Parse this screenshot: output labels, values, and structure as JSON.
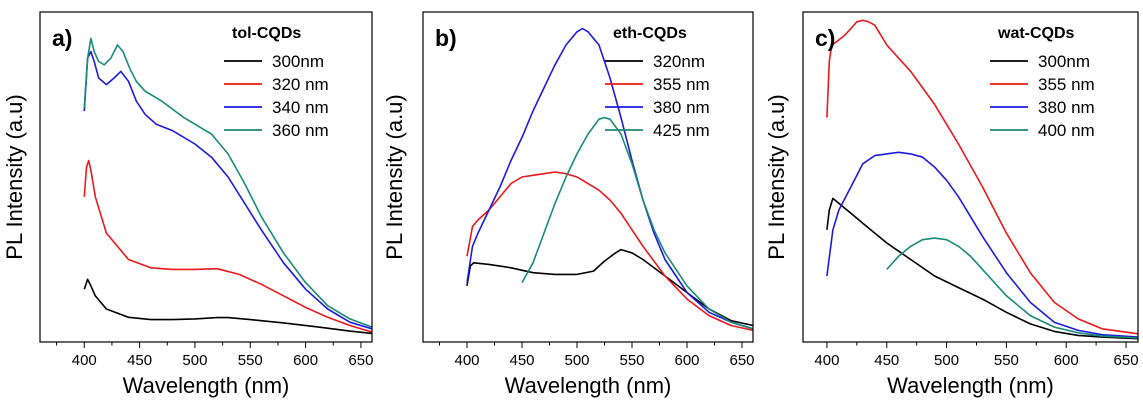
{
  "chart_data": [
    {
      "type": "line",
      "panel_label": "a)",
      "legend_title": "tol-CQDs",
      "xlabel": "Wavelength (nm)",
      "ylabel": "PL Intensity (a.u)",
      "xlim": [
        360,
        660
      ],
      "ylim": [
        0,
        1
      ],
      "xticks": [
        400,
        450,
        500,
        550,
        600,
        650
      ],
      "grid": false,
      "legend_position": "top-right",
      "series": [
        {
          "name": "300nm",
          "color": "#000000",
          "x": [
            400,
            403,
            406,
            410,
            420,
            440,
            460,
            480,
            500,
            520,
            530,
            550,
            580,
            610,
            640,
            660
          ],
          "y": [
            0.16,
            0.19,
            0.17,
            0.14,
            0.1,
            0.075,
            0.068,
            0.068,
            0.07,
            0.074,
            0.074,
            0.068,
            0.058,
            0.046,
            0.033,
            0.026
          ]
        },
        {
          "name": "320 nm",
          "color": "#e8191c",
          "x": [
            400,
            402,
            404,
            406,
            410,
            420,
            440,
            460,
            480,
            500,
            520,
            540,
            560,
            580,
            600,
            620,
            640,
            660
          ],
          "y": [
            0.44,
            0.53,
            0.55,
            0.52,
            0.44,
            0.33,
            0.25,
            0.225,
            0.22,
            0.22,
            0.222,
            0.205,
            0.175,
            0.14,
            0.105,
            0.075,
            0.05,
            0.03
          ]
        },
        {
          "name": "340 nm",
          "color": "#1c1cdc",
          "x": [
            400,
            403,
            406,
            409,
            413,
            420,
            427,
            433,
            440,
            447,
            455,
            465,
            480,
            500,
            515,
            530,
            545,
            560,
            580,
            600,
            620,
            640,
            660
          ],
          "y": [
            0.7,
            0.86,
            0.88,
            0.85,
            0.8,
            0.78,
            0.8,
            0.82,
            0.79,
            0.73,
            0.69,
            0.66,
            0.64,
            0.6,
            0.56,
            0.5,
            0.42,
            0.34,
            0.24,
            0.16,
            0.1,
            0.06,
            0.04
          ]
        },
        {
          "name": "360 nm",
          "color": "#1a8a7a",
          "x": [
            400,
            403,
            406,
            409,
            413,
            418,
            424,
            430,
            435,
            441,
            447,
            455,
            470,
            490,
            500,
            515,
            530,
            545,
            560,
            580,
            600,
            620,
            640,
            660
          ],
          "y": [
            0.71,
            0.86,
            0.92,
            0.88,
            0.85,
            0.84,
            0.86,
            0.9,
            0.88,
            0.83,
            0.79,
            0.76,
            0.73,
            0.68,
            0.66,
            0.63,
            0.57,
            0.48,
            0.38,
            0.27,
            0.18,
            0.11,
            0.07,
            0.045
          ]
        }
      ]
    },
    {
      "type": "line",
      "panel_label": "b)",
      "legend_title": "eth-CQDs",
      "xlabel": "Wavelength (nm)",
      "ylabel": "PL Intensity (a.u)",
      "xlim": [
        360,
        660
      ],
      "ylim": [
        0,
        1
      ],
      "xticks": [
        400,
        450,
        500,
        550,
        600,
        650
      ],
      "grid": false,
      "legend_position": "top-right",
      "series": [
        {
          "name": "320nm",
          "color": "#000000",
          "x": [
            400,
            403,
            406,
            420,
            440,
            460,
            480,
            500,
            515,
            525,
            535,
            540,
            550,
            560,
            580,
            600,
            620,
            640,
            660
          ],
          "y": [
            0.17,
            0.23,
            0.24,
            0.235,
            0.225,
            0.21,
            0.205,
            0.205,
            0.215,
            0.245,
            0.27,
            0.28,
            0.27,
            0.25,
            0.2,
            0.15,
            0.1,
            0.065,
            0.05
          ]
        },
        {
          "name": "355 nm",
          "color": "#e8191c",
          "x": [
            400,
            405,
            410,
            420,
            430,
            440,
            450,
            460,
            470,
            480,
            490,
            500,
            510,
            520,
            530,
            540,
            550,
            560,
            580,
            600,
            620,
            640,
            660
          ],
          "y": [
            0.26,
            0.35,
            0.37,
            0.4,
            0.44,
            0.48,
            0.5,
            0.505,
            0.51,
            0.515,
            0.51,
            0.5,
            0.48,
            0.46,
            0.43,
            0.39,
            0.34,
            0.29,
            0.2,
            0.13,
            0.08,
            0.05,
            0.035
          ]
        },
        {
          "name": "380 nm",
          "color": "#1c1cdc",
          "x": [
            400,
            405,
            410,
            420,
            430,
            440,
            450,
            460,
            470,
            480,
            490,
            500,
            505,
            510,
            520,
            530,
            540,
            550,
            560,
            570,
            580,
            600,
            620,
            640,
            660
          ],
          "y": [
            0.18,
            0.29,
            0.33,
            0.4,
            0.47,
            0.55,
            0.62,
            0.7,
            0.77,
            0.84,
            0.9,
            0.94,
            0.95,
            0.94,
            0.9,
            0.8,
            0.68,
            0.55,
            0.43,
            0.33,
            0.25,
            0.15,
            0.09,
            0.06,
            0.04
          ]
        },
        {
          "name": "425 nm",
          "color": "#1a8a7a",
          "x": [
            450,
            455,
            460,
            470,
            480,
            490,
            500,
            510,
            520,
            525,
            530,
            540,
            550,
            560,
            570,
            580,
            600,
            620,
            640,
            660
          ],
          "y": [
            0.18,
            0.21,
            0.24,
            0.33,
            0.42,
            0.5,
            0.57,
            0.63,
            0.675,
            0.68,
            0.675,
            0.63,
            0.54,
            0.43,
            0.34,
            0.27,
            0.17,
            0.1,
            0.06,
            0.04
          ]
        }
      ]
    },
    {
      "type": "line",
      "panel_label": "c)",
      "legend_title": "wat-CQDs",
      "xlabel": "Wavelength (nm)",
      "ylabel": "PL Intensity (a.u)",
      "xlim": [
        380,
        660
      ],
      "ylim": [
        0,
        1
      ],
      "xticks": [
        400,
        450,
        500,
        550,
        600,
        650
      ],
      "grid": false,
      "legend_position": "top-right",
      "series": [
        {
          "name": "300nm",
          "color": "#000000",
          "x": [
            400,
            402,
            405,
            410,
            420,
            430,
            440,
            450,
            470,
            490,
            510,
            530,
            550,
            570,
            590,
            610,
            630,
            660
          ],
          "y": [
            0.34,
            0.4,
            0.435,
            0.42,
            0.39,
            0.36,
            0.33,
            0.3,
            0.25,
            0.2,
            0.165,
            0.13,
            0.09,
            0.055,
            0.032,
            0.02,
            0.015,
            0.01
          ]
        },
        {
          "name": "355 nm",
          "color": "#e8191c",
          "x": [
            400,
            402,
            404,
            408,
            415,
            420,
            425,
            430,
            435,
            440,
            445,
            450,
            460,
            470,
            490,
            510,
            530,
            550,
            570,
            590,
            610,
            630,
            660
          ],
          "y": [
            0.68,
            0.85,
            0.9,
            0.91,
            0.93,
            0.95,
            0.97,
            0.975,
            0.97,
            0.96,
            0.93,
            0.9,
            0.86,
            0.82,
            0.72,
            0.6,
            0.47,
            0.33,
            0.21,
            0.12,
            0.07,
            0.04,
            0.025
          ]
        },
        {
          "name": "380 nm",
          "color": "#1c1cdc",
          "x": [
            400,
            405,
            410,
            420,
            430,
            440,
            450,
            460,
            470,
            480,
            490,
            500,
            510,
            520,
            530,
            550,
            570,
            590,
            610,
            630,
            660
          ],
          "y": [
            0.2,
            0.34,
            0.4,
            0.47,
            0.54,
            0.565,
            0.57,
            0.575,
            0.57,
            0.56,
            0.53,
            0.49,
            0.44,
            0.38,
            0.32,
            0.21,
            0.12,
            0.06,
            0.035,
            0.022,
            0.015
          ]
        },
        {
          "name": "400 nm",
          "color": "#1a8a7a",
          "x": [
            450,
            455,
            460,
            470,
            480,
            490,
            500,
            510,
            520,
            530,
            550,
            570,
            590,
            610,
            630,
            660
          ],
          "y": [
            0.22,
            0.24,
            0.26,
            0.29,
            0.31,
            0.315,
            0.31,
            0.29,
            0.26,
            0.22,
            0.14,
            0.08,
            0.045,
            0.028,
            0.018,
            0.012
          ]
        }
      ]
    }
  ]
}
